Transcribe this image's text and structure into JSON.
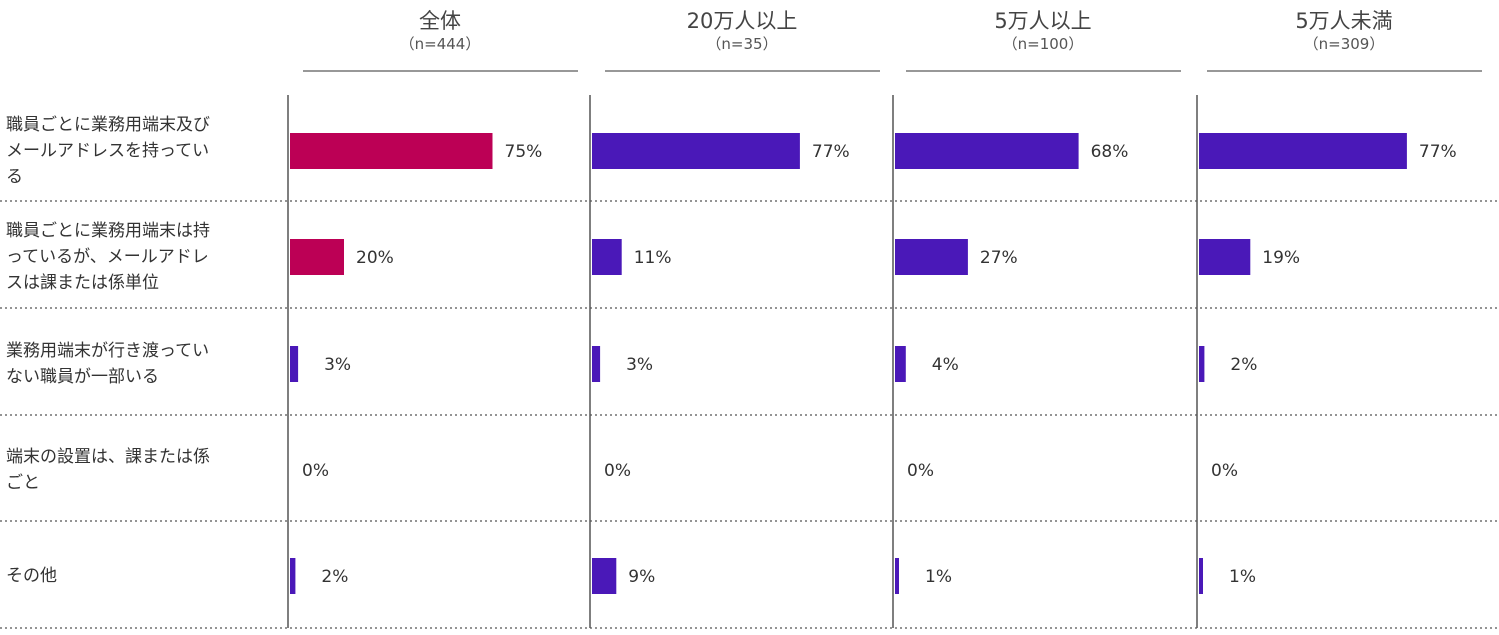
{
  "chart_data": {
    "type": "bar",
    "orientation": "horizontal",
    "categories": [
      "職員ごとに業務用端末及びメールアドレスを持っている",
      "職員ごとに業務用端末は持っているが、メールアドレスは課または係単位",
      "業務用端末が行き渡っていない職員が一部いる",
      "端末の設置は、課または係ごと",
      "その他"
    ],
    "category_lines": [
      [
        "職員ごとに業務用端末及び",
        "メールアドレスを持ってい",
        "る"
      ],
      [
        "職員ごとに業務用端末は持",
        "っているが、メールアドレ",
        "スは課または係単位"
      ],
      [
        "業務用端末が行き渡ってい",
        "ない職員が一部いる"
      ],
      [
        "端末の設置は、課または係",
        "ごと"
      ],
      [
        "その他"
      ]
    ],
    "panels": [
      {
        "title": "全体",
        "subtitle": "（n=444）",
        "values": [
          75,
          20,
          3,
          0,
          2
        ],
        "labels": [
          "75%",
          "20%",
          "3%",
          "0%",
          "2%"
        ]
      },
      {
        "title": "20万人以上",
        "subtitle": "（n=35）",
        "values": [
          77,
          11,
          3,
          0,
          9
        ],
        "labels": [
          "77%",
          "11%",
          "3%",
          "0%",
          "9%"
        ]
      },
      {
        "title": "5万人以上",
        "subtitle": "（n=100）",
        "values": [
          68,
          27,
          4,
          0,
          1
        ],
        "labels": [
          "68%",
          "27%",
          "4%",
          "0%",
          "1%"
        ]
      },
      {
        "title": "5万人未満",
        "subtitle": "（n=309）",
        "values": [
          77,
          19,
          2,
          0,
          1
        ],
        "labels": [
          "77%",
          "19%",
          "2%",
          "0%",
          "1%"
        ]
      }
    ],
    "xlim": [
      0,
      100
    ],
    "colors": {
      "highlight": "#BC0055",
      "default": "#4A18B8",
      "axis": "#555555",
      "divider": "#555555"
    },
    "highlight_rule": "panel 0 rows 0-1 in highlight color"
  }
}
